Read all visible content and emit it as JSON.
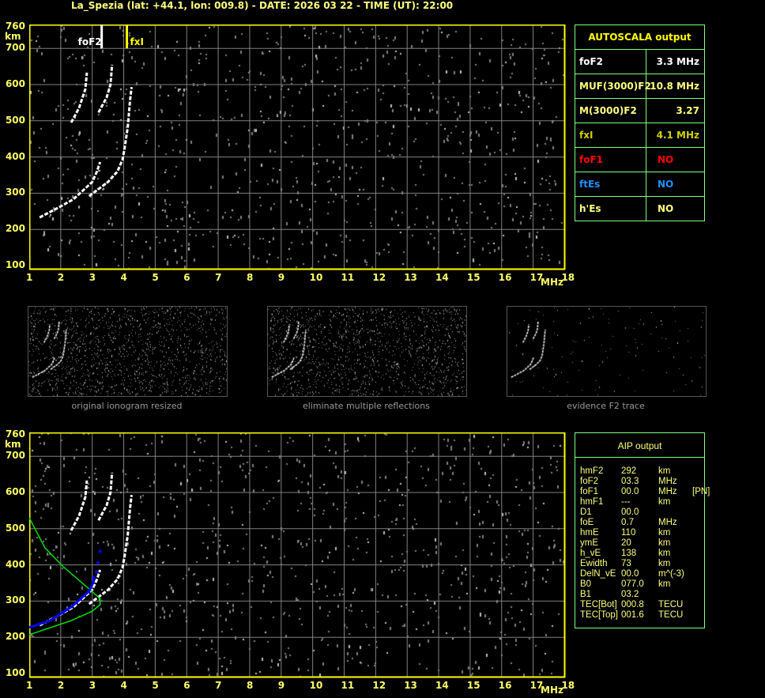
{
  "title": "La_Spezia (lat: +44.1, lon: 009.8) - DATE: 2026 03 22 - TIME (UT): 22:00",
  "colors": {
    "axis": "#ffff00",
    "grid": "#808080",
    "trace": "#ffffff",
    "noise": "#808080",
    "table_border": "#80ff80",
    "model_profile": "#00e000",
    "aip_trace": "#0000ff",
    "foF1": "#ff0000",
    "ftEs": "#1e90ff",
    "fxI": "#d0d000"
  },
  "autoscala": {
    "header": "AUTOSCALA output",
    "rows": [
      {
        "key": "foF2",
        "value": "3.3 MHz",
        "color": "#ffffff"
      },
      {
        "key": "MUF(3000)F2",
        "value": "10.8 MHz",
        "color": "#ffff80"
      },
      {
        "key": "M(3000)F2",
        "value": "3.27",
        "color": "#ffff80"
      },
      {
        "key": "fxI",
        "value": "4.1 MHz",
        "color": "#d0d000"
      },
      {
        "key": "foF1",
        "value": "NO",
        "color": "#ff0000"
      },
      {
        "key": "ftEs",
        "value": "NO",
        "color": "#1e90ff"
      },
      {
        "key": "h'Es",
        "value": "NO",
        "color": "#ffff80"
      }
    ]
  },
  "aip": {
    "header": "AIP output",
    "rows": [
      {
        "k": "hmF2",
        "v": "292",
        "u": "km",
        "x": ""
      },
      {
        "k": "foF2",
        "v": "03.3",
        "u": "MHz",
        "x": ""
      },
      {
        "k": "foF1",
        "v": "00.0",
        "u": "MHz",
        "x": "[PN]"
      },
      {
        "k": "hmF1",
        "v": "---",
        "u": "km",
        "x": ""
      },
      {
        "k": "D1",
        "v": "00.0",
        "u": "",
        "x": ""
      },
      {
        "k": "foE",
        "v": "0.7",
        "u": "MHz",
        "x": ""
      },
      {
        "k": "hmE",
        "v": "110",
        "u": "km",
        "x": ""
      },
      {
        "k": "ymE",
        "v": "20",
        "u": "km",
        "x": ""
      },
      {
        "k": "h_vE",
        "v": "138",
        "u": "km",
        "x": ""
      },
      {
        "k": "Ewidth",
        "v": "73",
        "u": "km",
        "x": ""
      },
      {
        "k": "DelN_vE",
        "v": "00.0",
        "u": "m^(-3)",
        "x": ""
      },
      {
        "k": "B0",
        "v": "077.0",
        "u": "km",
        "x": ""
      },
      {
        "k": "B1",
        "v": "03.2",
        "u": "",
        "x": ""
      },
      {
        "k": "TEC[Bot]",
        "v": "000.8",
        "u": "TECU",
        "x": ""
      },
      {
        "k": "TEC[Top]",
        "v": "001.6",
        "u": "TECU",
        "x": ""
      }
    ]
  },
  "thumbnails": [
    {
      "caption": "original ionogram resized"
    },
    {
      "caption": "eliminate multiple reflections"
    },
    {
      "caption": "evidence F2 trace"
    }
  ],
  "chart_data": [
    {
      "type": "scatter",
      "panel": "autoscala ionogram",
      "xlabel": "MHz",
      "ylabel": "km",
      "xlim": [
        1,
        18
      ],
      "ylim": [
        100,
        760
      ],
      "xticks": [
        "1",
        "2",
        "3",
        "4",
        "5",
        "6",
        "7",
        "8",
        "9",
        "10",
        "11",
        "12",
        "13",
        "14",
        "15",
        "16",
        "17",
        "18"
      ],
      "yticks": [
        "100",
        "200",
        "300",
        "400",
        "500",
        "600",
        "700",
        "760"
      ],
      "grid": true,
      "markers": [
        {
          "label": "foF2",
          "freq": 3.3,
          "color": "#ffffff"
        },
        {
          "label": "fxI",
          "freq": 4.1,
          "color": "#ffff00"
        }
      ],
      "traces": [
        {
          "points": [
            [
              1.33,
              233
            ],
            [
              1.9,
              259
            ],
            [
              2.4,
              283
            ],
            [
              3.0,
              331
            ],
            [
              3.15,
              360
            ],
            [
              3.25,
              386
            ]
          ]
        },
        {
          "points": [
            [
              2.9,
              292
            ],
            [
              3.5,
              331
            ],
            [
              3.8,
              360
            ],
            [
              3.96,
              392
            ],
            [
              4.03,
              425
            ],
            [
              4.13,
              484
            ],
            [
              4.2,
              556
            ],
            [
              4.25,
              593
            ]
          ]
        },
        {
          "points": [
            [
              2.33,
              495
            ],
            [
              2.58,
              535
            ],
            [
              2.78,
              587
            ],
            [
              2.83,
              633
            ]
          ]
        },
        {
          "points": [
            [
              3.2,
              523
            ],
            [
              3.46,
              565
            ],
            [
              3.58,
              600
            ],
            [
              3.63,
              655
            ]
          ]
        }
      ]
    },
    {
      "type": "scatter",
      "panel": "AIP ionogram",
      "xlabel": "MHz",
      "ylabel": "km",
      "xlim": [
        1,
        18
      ],
      "ylim": [
        100,
        760
      ],
      "xticks": [
        "1",
        "2",
        "3",
        "4",
        "5",
        "6",
        "7",
        "8",
        "9",
        "10",
        "11",
        "12",
        "13",
        "14",
        "15",
        "16",
        "17",
        "18"
      ],
      "yticks": [
        "100",
        "200",
        "300",
        "400",
        "500",
        "600",
        "700",
        "760"
      ],
      "grid": true,
      "model_profile": [
        [
          1.0,
          530
        ],
        [
          1.5,
          447
        ],
        [
          2.08,
          395
        ],
        [
          2.75,
          345
        ],
        [
          3.25,
          307
        ],
        [
          3.25,
          290
        ],
        [
          3.0,
          272
        ],
        [
          2.33,
          246
        ],
        [
          1.58,
          224
        ],
        [
          1.0,
          207
        ]
      ],
      "aip_trace": [
        [
          1.0,
          227
        ],
        [
          1.65,
          246
        ],
        [
          2.33,
          283
        ],
        [
          2.9,
          327
        ],
        [
          3.03,
          351
        ],
        [
          3.05,
          365
        ],
        [
          3.13,
          380
        ],
        [
          3.18,
          406
        ],
        [
          3.25,
          438
        ]
      ]
    }
  ]
}
